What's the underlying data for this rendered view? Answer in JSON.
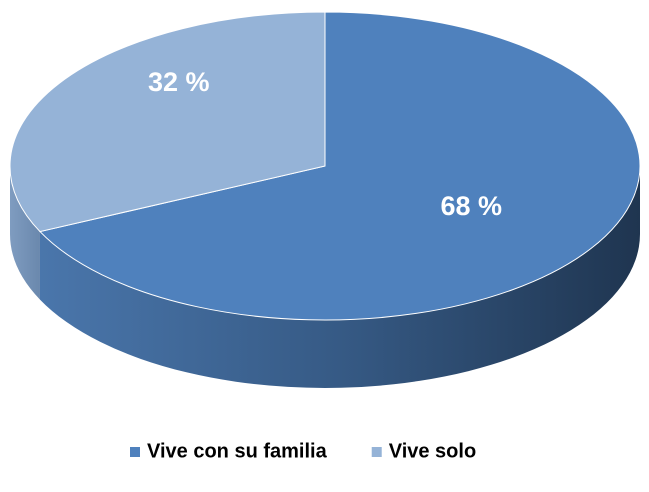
{
  "chart_data": {
    "type": "pie",
    "categories": [
      "Vive con su familia",
      "Vive solo"
    ],
    "values": [
      68,
      32
    ],
    "value_labels": [
      "68 %",
      "32 %"
    ],
    "colors": [
      "#4f81bd",
      "#95b3d7"
    ],
    "legend": "bottom"
  }
}
